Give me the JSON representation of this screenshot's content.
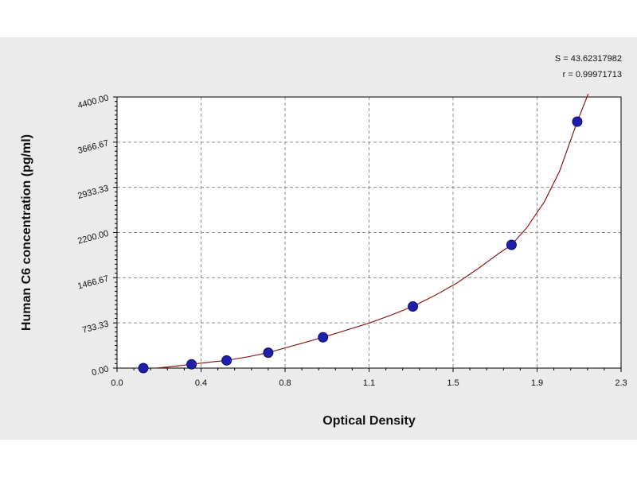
{
  "chart_data": {
    "type": "scatter",
    "title": "",
    "xlabel": "Optical Density",
    "ylabel": "Human C6 concentration (pg/ml)",
    "xlim": [
      0.0,
      2.3
    ],
    "ylim": [
      0.0,
      4400.0
    ],
    "x_tick_labels": [
      "0.0",
      "0.4",
      "0.8",
      "1.1",
      "1.5",
      "1.9",
      "2.3"
    ],
    "y_tick_labels": [
      "0.00",
      "733.33",
      "1466.67",
      "2200.00",
      "2933.33",
      "3666.67",
      "4400.00"
    ],
    "grid": true,
    "points": [
      {
        "x": 0.12,
        "y": 0
      },
      {
        "x": 0.34,
        "y": 62
      },
      {
        "x": 0.5,
        "y": 125
      },
      {
        "x": 0.69,
        "y": 250
      },
      {
        "x": 0.94,
        "y": 500
      },
      {
        "x": 1.35,
        "y": 1000
      },
      {
        "x": 1.8,
        "y": 2000
      },
      {
        "x": 2.1,
        "y": 4000
      }
    ],
    "fit_curve": [
      [
        0.18,
        0
      ],
      [
        0.25,
        25
      ],
      [
        0.34,
        62
      ],
      [
        0.42,
        95
      ],
      [
        0.5,
        125
      ],
      [
        0.6,
        185
      ],
      [
        0.69,
        250
      ],
      [
        0.8,
        360
      ],
      [
        0.94,
        500
      ],
      [
        1.05,
        620
      ],
      [
        1.15,
        730
      ],
      [
        1.25,
        860
      ],
      [
        1.35,
        1000
      ],
      [
        1.45,
        1180
      ],
      [
        1.55,
        1380
      ],
      [
        1.65,
        1620
      ],
      [
        1.75,
        1880
      ],
      [
        1.8,
        2000
      ],
      [
        1.87,
        2280
      ],
      [
        1.95,
        2700
      ],
      [
        2.02,
        3200
      ],
      [
        2.1,
        4000
      ],
      [
        2.15,
        4450
      ]
    ],
    "annotations": [
      "S = 43.62317982",
      "r = 0.99971713"
    ],
    "colors": {
      "points": "#1f1fa8",
      "curve": "#8b1a1a",
      "grid": "#8c8c8c",
      "background": "#ebebeb",
      "plot_area": "#ffffff"
    }
  }
}
